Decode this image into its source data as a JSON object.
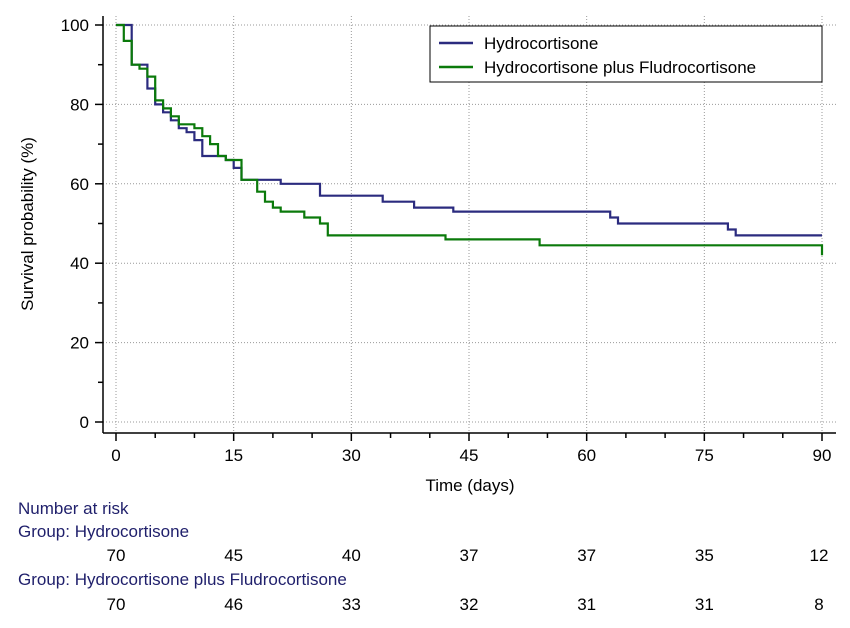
{
  "chart_data": {
    "type": "line",
    "title": "",
    "xlabel": "Time (days)",
    "ylabel": "Survival probability (%)",
    "xlim": [
      0,
      90
    ],
    "ylim": [
      0,
      100
    ],
    "x_ticks": [
      0,
      15,
      30,
      45,
      60,
      75,
      90
    ],
    "y_ticks": [
      0,
      20,
      40,
      60,
      80,
      100
    ],
    "x_tick_labels": [
      "0",
      "15",
      "30",
      "45",
      "60",
      "75",
      "90"
    ],
    "y_tick_labels": [
      "0",
      "20",
      "40",
      "60",
      "80",
      "100"
    ],
    "grid": true,
    "legend_position": "top-right",
    "step": true,
    "series": [
      {
        "name": "Hydrocortisone",
        "color": "#2b2b7f",
        "points": [
          [
            0,
            100
          ],
          [
            2,
            100
          ],
          [
            2,
            90
          ],
          [
            4,
            90
          ],
          [
            4,
            84
          ],
          [
            5,
            84
          ],
          [
            5,
            80
          ],
          [
            6,
            80
          ],
          [
            6,
            78
          ],
          [
            7,
            78
          ],
          [
            7,
            76
          ],
          [
            8,
            76
          ],
          [
            8,
            74
          ],
          [
            9,
            74
          ],
          [
            9,
            73
          ],
          [
            10,
            73
          ],
          [
            10,
            71
          ],
          [
            11,
            71
          ],
          [
            11,
            67
          ],
          [
            14,
            67
          ],
          [
            14,
            66
          ],
          [
            15,
            66
          ],
          [
            15,
            64
          ],
          [
            16,
            64
          ],
          [
            16,
            61
          ],
          [
            21,
            61
          ],
          [
            21,
            60
          ],
          [
            26,
            60
          ],
          [
            26,
            57
          ],
          [
            34,
            57
          ],
          [
            34,
            55.5
          ],
          [
            38,
            55.5
          ],
          [
            38,
            54
          ],
          [
            43,
            54
          ],
          [
            43,
            53
          ],
          [
            63,
            53
          ],
          [
            63,
            51.5
          ],
          [
            64,
            51.5
          ],
          [
            64,
            50
          ],
          [
            78,
            50
          ],
          [
            78,
            48.5
          ],
          [
            79,
            48.5
          ],
          [
            79,
            47
          ],
          [
            90,
            47
          ]
        ]
      },
      {
        "name": "Hydrocortisone plus Fludrocortisone",
        "color": "#0b7a0b",
        "points": [
          [
            0,
            100
          ],
          [
            1,
            100
          ],
          [
            1,
            96
          ],
          [
            2,
            96
          ],
          [
            2,
            90
          ],
          [
            3,
            90
          ],
          [
            3,
            89
          ],
          [
            4,
            89
          ],
          [
            4,
            87
          ],
          [
            5,
            87
          ],
          [
            5,
            81
          ],
          [
            6,
            81
          ],
          [
            6,
            79
          ],
          [
            7,
            79
          ],
          [
            7,
            77
          ],
          [
            8,
            77
          ],
          [
            8,
            75
          ],
          [
            10,
            75
          ],
          [
            10,
            74
          ],
          [
            11,
            74
          ],
          [
            11,
            72
          ],
          [
            12,
            72
          ],
          [
            12,
            70
          ],
          [
            13,
            70
          ],
          [
            13,
            67
          ],
          [
            14,
            67
          ],
          [
            14,
            66
          ],
          [
            16,
            66
          ],
          [
            16,
            61
          ],
          [
            18,
            61
          ],
          [
            18,
            58
          ],
          [
            19,
            58
          ],
          [
            19,
            55.5
          ],
          [
            20,
            55.5
          ],
          [
            20,
            54
          ],
          [
            21,
            54
          ],
          [
            21,
            53
          ],
          [
            24,
            53
          ],
          [
            24,
            51.5
          ],
          [
            26,
            51.5
          ],
          [
            26,
            50
          ],
          [
            27,
            50
          ],
          [
            27,
            47
          ],
          [
            42,
            47
          ],
          [
            42,
            46
          ],
          [
            54,
            46
          ],
          [
            54,
            44.5
          ],
          [
            90,
            44.5
          ],
          [
            90,
            42
          ]
        ]
      }
    ]
  },
  "risk_table": {
    "title": "Number at risk",
    "groups": [
      {
        "label": "Group: Hydrocortisone",
        "color": "#1f1f6b",
        "values": [
          "70",
          "45",
          "40",
          "37",
          "37",
          "35",
          "12"
        ]
      },
      {
        "label": "Group: Hydrocortisone plus Fludrocortisone",
        "color": "#1f1f6b",
        "values": [
          "70",
          "46",
          "33",
          "32",
          "31",
          "31",
          "8"
        ]
      }
    ]
  }
}
